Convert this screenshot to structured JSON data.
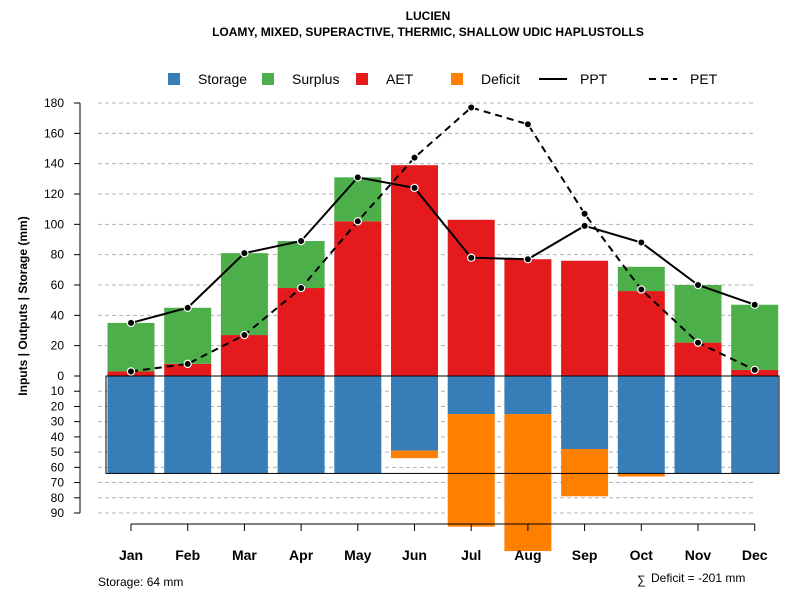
{
  "chart_data": {
    "type": "bar",
    "title": "LUCIEN",
    "subtitle": "LOAMY, MIXED, SUPERACTIVE, THERMIC, SHALLOW UDIC HAPLUSTOLLS",
    "ylabel": "Inputs | Outputs | Storage    (mm)",
    "categories": [
      "Jan",
      "Feb",
      "Mar",
      "Apr",
      "May",
      "Jun",
      "Jul",
      "Aug",
      "Sep",
      "Oct",
      "Nov",
      "Dec"
    ],
    "upper_ticks": [
      "0",
      "20",
      "40",
      "60",
      "80",
      "100",
      "120",
      "140",
      "160",
      "180"
    ],
    "lower_ticks": [
      "10",
      "20",
      "30",
      "40",
      "50",
      "60",
      "70",
      "80",
      "90"
    ],
    "ylim_upper": [
      0,
      180
    ],
    "ylim_lower": [
      0,
      90
    ],
    "grid": true,
    "legend_position": "top",
    "legend": [
      {
        "label": "Storage",
        "kind": "box",
        "color": "#377EB8"
      },
      {
        "label": "Surplus",
        "kind": "box",
        "color": "#4DAF4A"
      },
      {
        "label": "AET",
        "kind": "box",
        "color": "#E41A1C"
      },
      {
        "label": "Deficit",
        "kind": "box",
        "color": "#FF7F00"
      },
      {
        "label": "PPT",
        "kind": "solid"
      },
      {
        "label": "PET",
        "kind": "dashed"
      }
    ],
    "series": [
      {
        "name": "AET",
        "color": "#E41A1C",
        "values": [
          3,
          8,
          27,
          58,
          102,
          139,
          103,
          77,
          76,
          56,
          22,
          4
        ]
      },
      {
        "name": "Surplus",
        "color": "#4DAF4A",
        "values": [
          32,
          37,
          54,
          31,
          29,
          0,
          0,
          0,
          0,
          16,
          38,
          43
        ]
      },
      {
        "name": "Storage",
        "color": "#377EB8",
        "values": [
          64,
          64,
          64,
          64,
          64,
          49,
          25,
          25,
          48,
          64,
          64,
          64
        ]
      },
      {
        "name": "Deficit",
        "color": "#FF7F00",
        "values": [
          0,
          0,
          0,
          0,
          0,
          5,
          74,
          90,
          31,
          2,
          0,
          0
        ]
      },
      {
        "name": "PPT",
        "values": [
          35,
          45,
          81,
          89,
          131,
          124,
          78,
          77,
          99,
          88,
          60,
          47
        ]
      },
      {
        "name": "PET",
        "values": [
          3,
          8,
          27,
          58,
          102,
          144,
          177,
          166,
          107,
          57,
          22,
          4
        ]
      }
    ],
    "storage_max": 64,
    "colors": {
      "storage": "#377EB8",
      "surplus": "#4DAF4A",
      "aet": "#E41A1C",
      "deficit": "#FF7F00",
      "grid": "#b3b3b3",
      "line": "#000000"
    }
  },
  "footer": {
    "storage_note": "Storage: 64 mm",
    "deficit_symbol": "∑",
    "deficit_note": "Deficit = -201 mm"
  }
}
